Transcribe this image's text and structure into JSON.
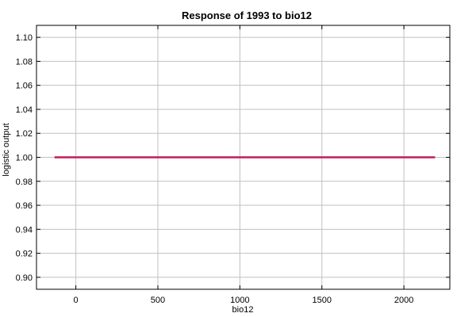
{
  "chart_data": {
    "type": "line",
    "title": "Response of 1993 to bio12",
    "xlabel": "bio12",
    "ylabel": "logistic output",
    "xlim": [
      -240,
      2280
    ],
    "ylim": [
      0.89,
      1.11
    ],
    "xticks": [
      0,
      500,
      1000,
      1500,
      2000
    ],
    "yticks": [
      0.9,
      0.92,
      0.94,
      0.96,
      0.98,
      1.0,
      1.02,
      1.04,
      1.06,
      1.08,
      1.1
    ],
    "grid": true,
    "series": [
      {
        "x": [
          -130,
          2190
        ],
        "y": [
          1.0,
          1.0
        ],
        "color": "#c41a5a"
      }
    ]
  }
}
